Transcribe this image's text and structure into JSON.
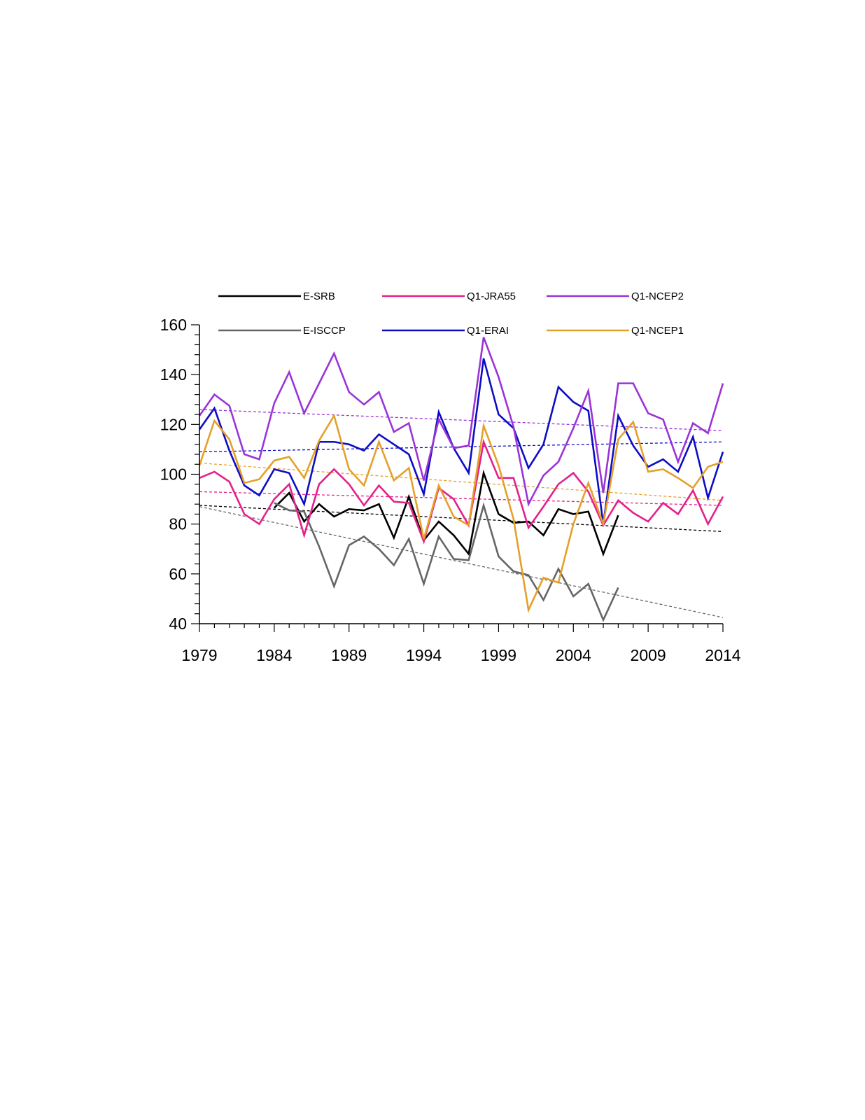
{
  "chart_data": {
    "type": "line",
    "title": "",
    "xlabel": "",
    "ylabel": "",
    "xlim": [
      1979,
      2014
    ],
    "ylim": [
      40,
      160
    ],
    "x_ticks": [
      1979,
      1984,
      1989,
      1994,
      1999,
      2004,
      2009,
      2014
    ],
    "y_ticks": [
      40,
      60,
      80,
      100,
      120,
      140,
      160
    ],
    "legend_placement": "top",
    "grid": false,
    "series": [
      {
        "name": "E-SRB",
        "color": "#000000",
        "start_year": 1984,
        "values": [
          86.5,
          92.5,
          81,
          88,
          83,
          86,
          85.5,
          88,
          74.5,
          91,
          73.5,
          81,
          75.5,
          68,
          100.5,
          84,
          80.5,
          81,
          75.5,
          86,
          84,
          85,
          68,
          83.5
        ],
        "trend": [
          87.5,
          77.0
        ]
      },
      {
        "name": "E-ISCCP",
        "color": "#666666",
        "start_year": 1984,
        "values": [
          88.5,
          85.5,
          85,
          71,
          55,
          71.5,
          75,
          70,
          63.5,
          74,
          56,
          75,
          66,
          65.5,
          87.5,
          67,
          61,
          59.5,
          49.5,
          62,
          51,
          56,
          41.5,
          54.5
        ],
        "trend": [
          87.0,
          42.5
        ]
      },
      {
        "name": "Q1-JRA55",
        "color": "#e3218b",
        "start_year": 1979,
        "values": [
          98.5,
          101,
          97,
          84,
          80,
          90,
          96,
          75.5,
          96,
          102,
          96,
          87.5,
          95.5,
          89,
          88.5,
          73,
          94.5,
          90,
          79.5,
          113,
          98.5,
          98.5,
          78.5,
          87,
          96,
          100.5,
          93,
          79.5,
          89.5,
          84.5,
          81,
          88.5,
          84,
          93.5,
          80,
          91
        ],
        "trend": [
          93.0,
          87.5
        ]
      },
      {
        "name": "Q1-ERAI",
        "color": "#0d0dc4",
        "start_year": 1979,
        "values": [
          118,
          126.5,
          109.5,
          95.5,
          91.5,
          102,
          100.5,
          88,
          113,
          113,
          112,
          109.5,
          116,
          112,
          108,
          92,
          125,
          110.5,
          100.5,
          146.5,
          124,
          118.5,
          102.5,
          112,
          135,
          129,
          125.5,
          80,
          123.5,
          111.5,
          103,
          106,
          101,
          115,
          90.5,
          109
        ],
        "trend": [
          109.0,
          113.0
        ]
      },
      {
        "name": "Q1-NCEP2",
        "color": "#9b34d6",
        "start_year": 1979,
        "values": [
          123.5,
          132,
          127.5,
          108,
          106,
          128.5,
          141,
          124.5,
          136.5,
          148.5,
          133,
          128,
          133,
          117,
          120.5,
          97.5,
          122,
          110.5,
          111.5,
          155,
          139,
          119,
          88,
          99.5,
          105,
          118.5,
          133.5,
          92.5,
          136.5,
          136.5,
          124.5,
          122,
          105,
          120.5,
          116.5,
          136.5
        ],
        "trend": [
          126.0,
          117.5
        ]
      },
      {
        "name": "Q1-NCEP1",
        "color": "#e5a02a",
        "start_year": 1979,
        "values": [
          103.5,
          121.5,
          114,
          96.5,
          98,
          105.5,
          107,
          98.5,
          113.5,
          123.5,
          102,
          95.5,
          113,
          97.5,
          102.5,
          74,
          95.5,
          83,
          79.5,
          119.5,
          103.5,
          82,
          45.5,
          58.5,
          56.5,
          80,
          96.5,
          80,
          114,
          121,
          101,
          102,
          98.5,
          94.5,
          103,
          105
        ],
        "trend": [
          104.5,
          89.5
        ]
      }
    ]
  }
}
